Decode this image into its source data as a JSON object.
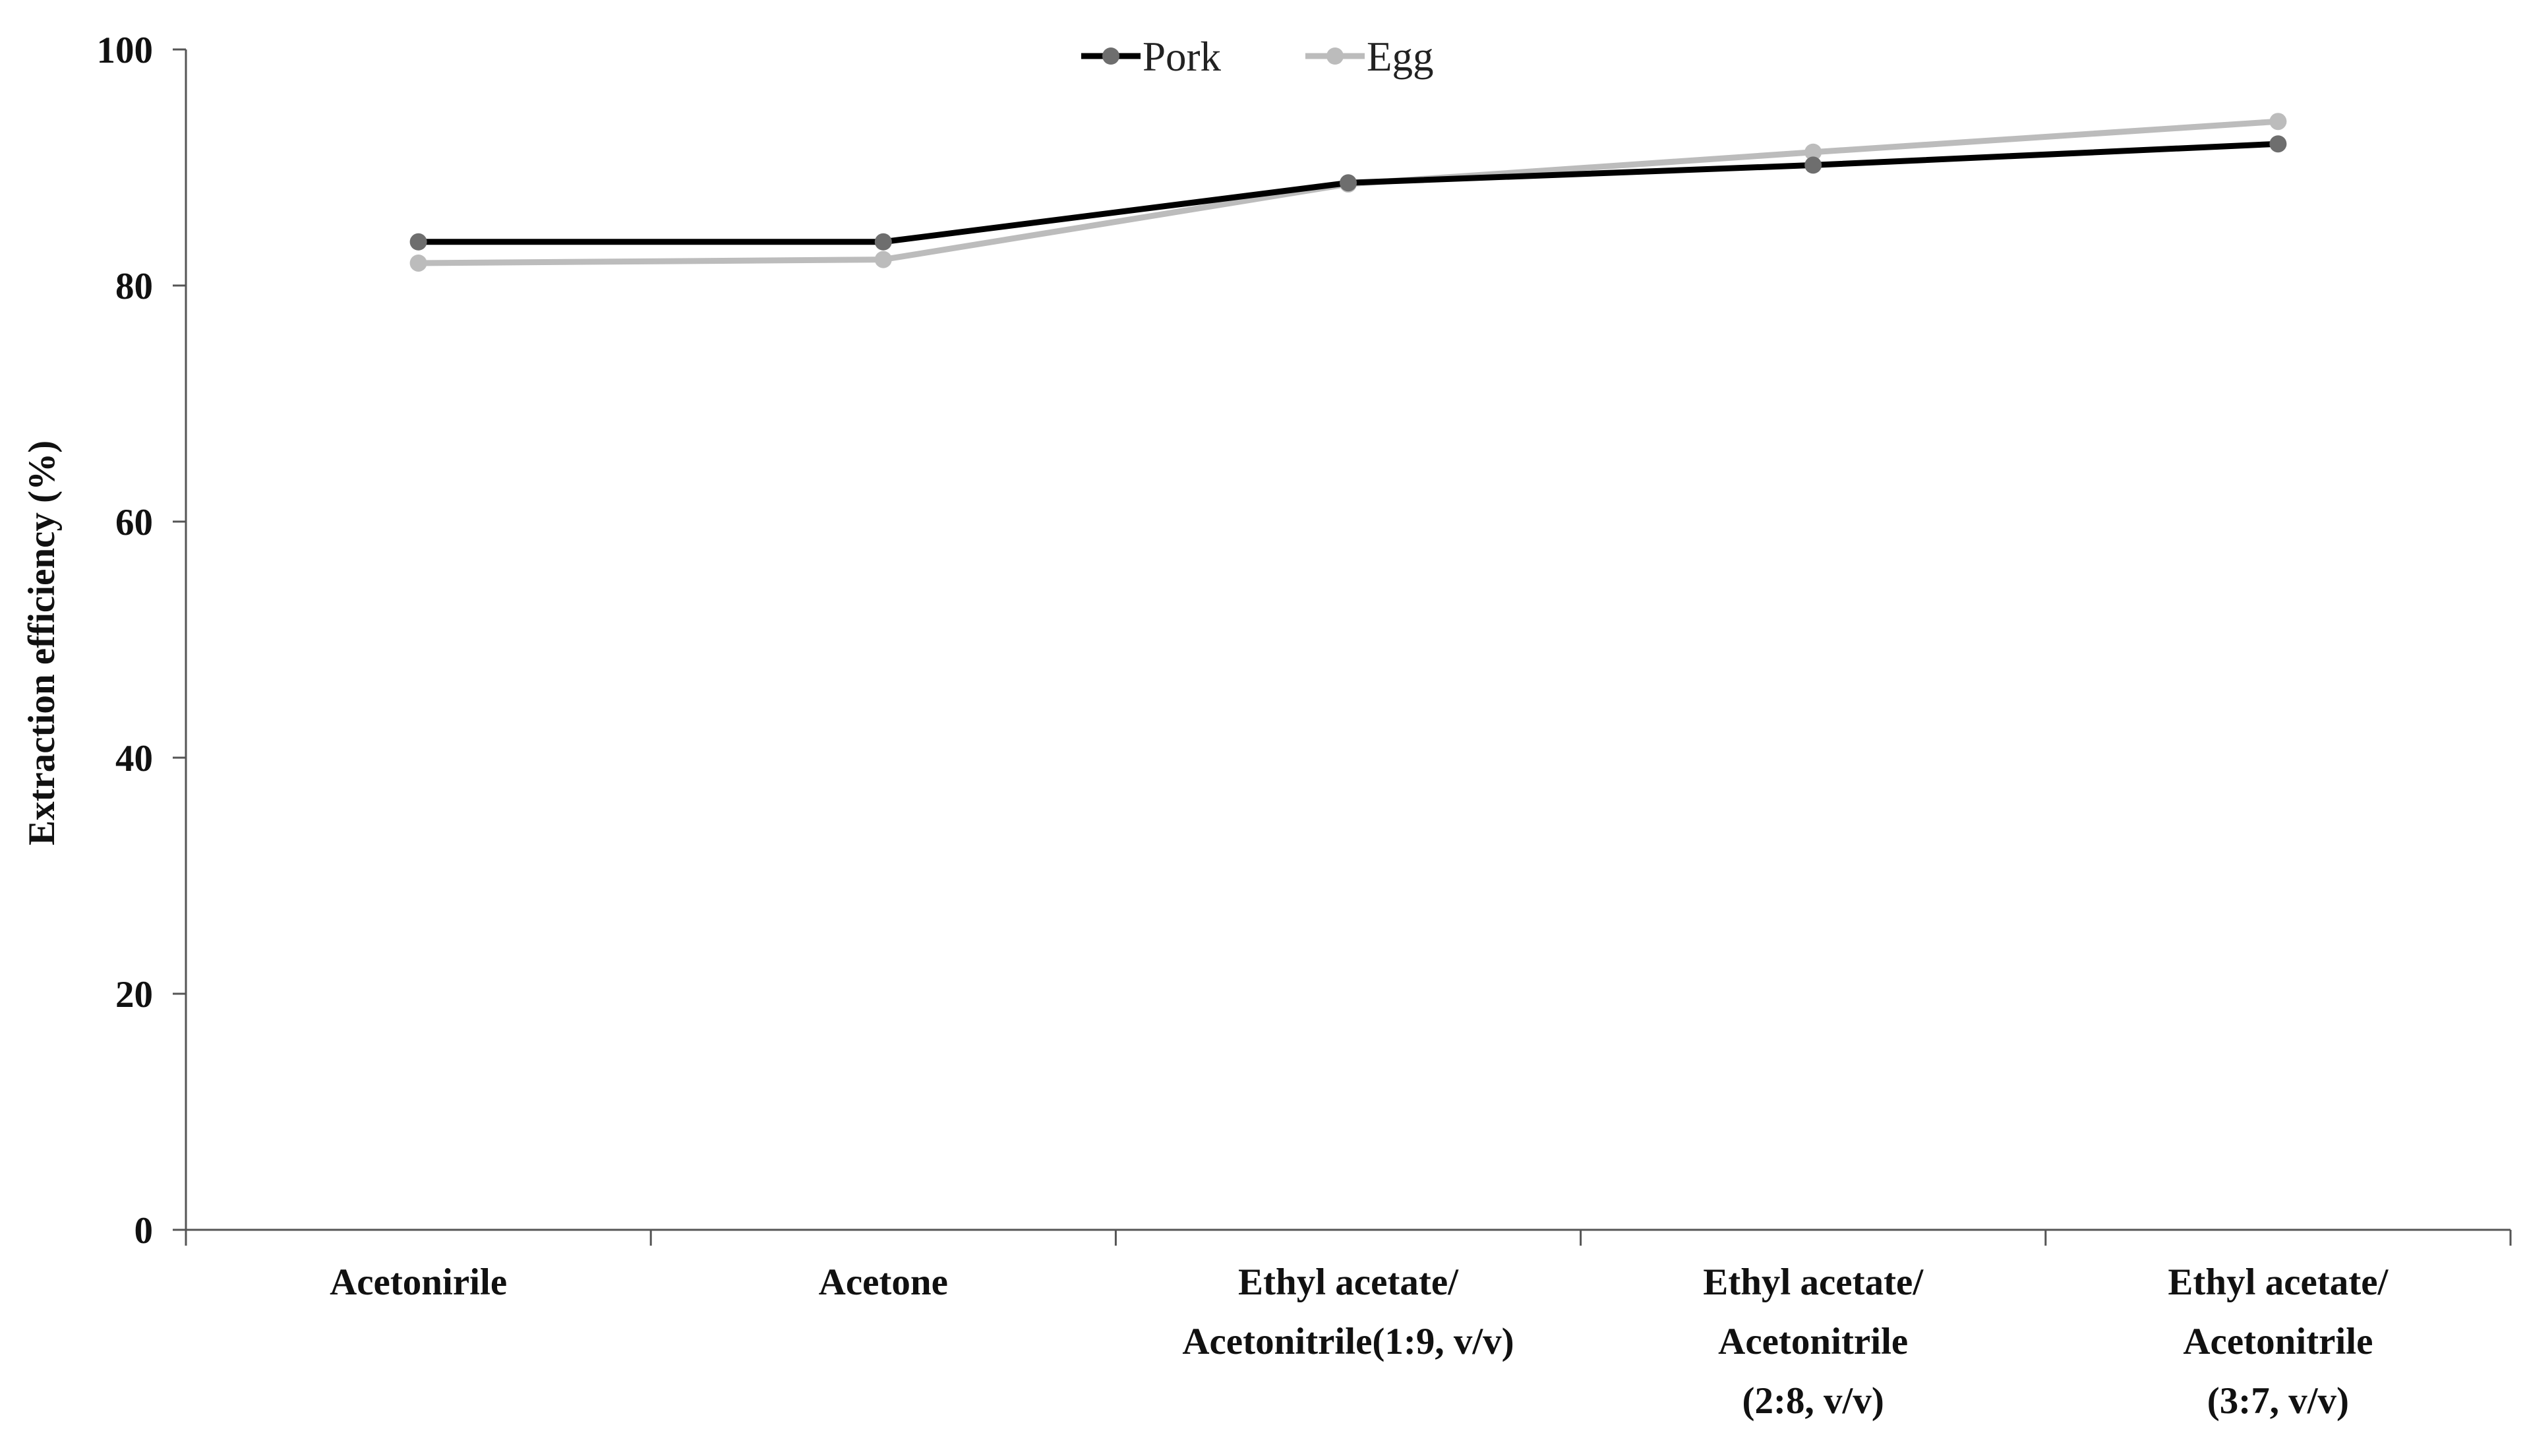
{
  "chart_data": {
    "type": "line",
    "title": "",
    "xlabel": "",
    "ylabel": "Extraction efficiency (%)",
    "ylim": [
      0,
      100
    ],
    "yticks": [
      "0",
      "20",
      "40",
      "60",
      "80",
      "100"
    ],
    "categories": [
      [
        "Acetonirile"
      ],
      [
        "Acetone"
      ],
      [
        "Ethyl acetate/",
        "Acetonitrile(1:9, v/v)"
      ],
      [
        "Ethyl acetate/",
        "Acetonitrile",
        "(2:8, v/v)"
      ],
      [
        "Ethyl acetate/",
        "Acetonitrile",
        "(3:7, v/v)"
      ]
    ],
    "series": [
      {
        "name": "Pork",
        "values": [
          83.7,
          83.7,
          88.7,
          90.2,
          92.0
        ],
        "color": "#000000",
        "marker_color": "#6e6e6e"
      },
      {
        "name": "Egg",
        "values": [
          81.9,
          82.2,
          88.6,
          91.3,
          93.9
        ],
        "color": "#bcbcbc",
        "marker_color": "#bcbcbc"
      }
    ],
    "grid": false,
    "legend": "top-center"
  }
}
